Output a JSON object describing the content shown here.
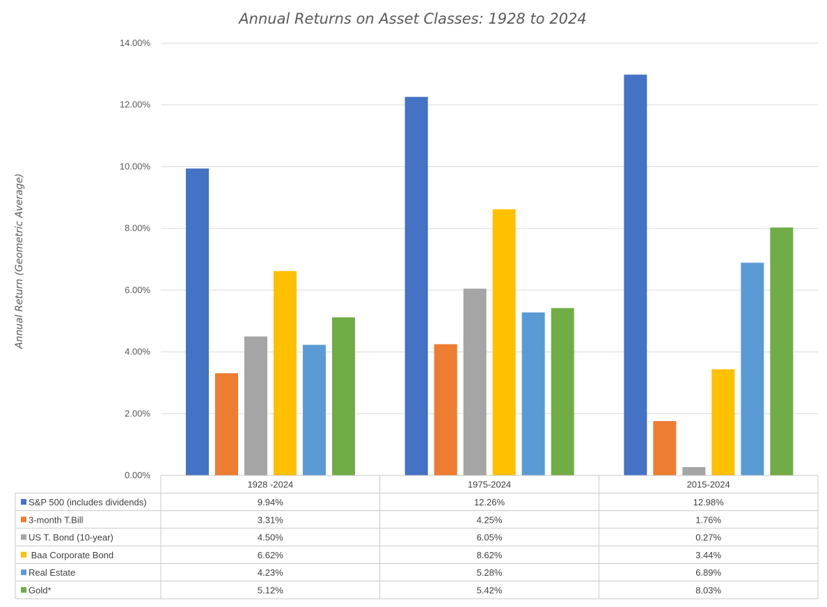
{
  "chart_data": {
    "type": "bar",
    "title": "Annual Returns on Asset Classes: 1928 to 2024",
    "xlabel": "",
    "ylabel": "Annual Return (Geometric Average)",
    "ylim": [
      0,
      14
    ],
    "y_ticks": [
      "0.00%",
      "2.00%",
      "4.00%",
      "6.00%",
      "8.00%",
      "10.00%",
      "12.00%",
      "14.00%"
    ],
    "grid": true,
    "legend": "data table below chart",
    "categories": [
      "1928 -2024",
      "1975-2024",
      "2015-2024"
    ],
    "series": [
      {
        "name": "S&P 500 (includes dividends)",
        "color": "#4472C4",
        "values": [
          9.94,
          12.26,
          12.98
        ],
        "labels": [
          "9.94%",
          "12.26%",
          "12.98%"
        ]
      },
      {
        "name": "3-month T.Bill",
        "color": "#ED7D31",
        "values": [
          3.31,
          4.25,
          1.76
        ],
        "labels": [
          "3.31%",
          "4.25%",
          "1.76%"
        ]
      },
      {
        "name": "US T. Bond (10-year)",
        "color": "#A5A5A5",
        "values": [
          4.5,
          6.05,
          0.27
        ],
        "labels": [
          "4.50%",
          "6.05%",
          "0.27%"
        ]
      },
      {
        "name": " Baa Corporate Bond",
        "color": "#FFC000",
        "values": [
          6.62,
          8.62,
          3.44
        ],
        "labels": [
          "6.62%",
          "8.62%",
          "3.44%"
        ]
      },
      {
        "name": "Real Estate",
        "color": "#5B9BD5",
        "values": [
          4.23,
          5.28,
          6.89
        ],
        "labels": [
          "4.23%",
          "5.28%",
          "6.89%"
        ]
      },
      {
        "name": "Gold*",
        "color": "#70AD47",
        "values": [
          5.12,
          5.42,
          8.03
        ],
        "labels": [
          "5.12%",
          "5.42%",
          "8.03%"
        ]
      }
    ]
  }
}
